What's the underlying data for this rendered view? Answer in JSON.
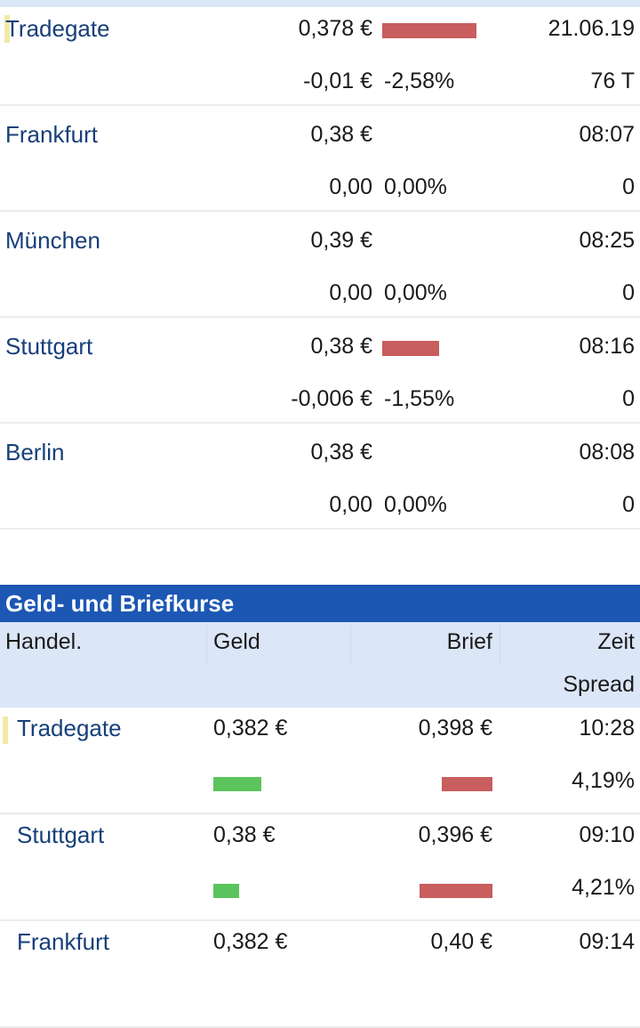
{
  "exchanges": [
    {
      "name": "Tradegate",
      "price": "0,378 €",
      "change": "-0,01 €",
      "change_pct": "-2,58%",
      "time": "21.06.19",
      "volume": "76 T",
      "highlight": true,
      "bar_color": "#c85e5e",
      "bar_fraction": 1.0
    },
    {
      "name": "Frankfurt",
      "price": "0,38 €",
      "change": "0,00",
      "change_pct": "0,00%",
      "time": "08:07",
      "volume": "0",
      "highlight": false,
      "bar_fraction": 0
    },
    {
      "name": "München",
      "price": "0,39 €",
      "change": "0,00",
      "change_pct": "0,00%",
      "time": "08:25",
      "volume": "0",
      "highlight": false,
      "bar_fraction": 0
    },
    {
      "name": "Stuttgart",
      "price": "0,38 €",
      "change": "-0,006 €",
      "change_pct": "-1,55%",
      "time": "08:16",
      "volume": "0",
      "highlight": false,
      "bar_color": "#c85e5e",
      "bar_fraction": 0.6
    },
    {
      "name": "Berlin",
      "price": "0,38 €",
      "change": "0,00",
      "change_pct": "0,00%",
      "time": "08:08",
      "volume": "0",
      "highlight": false,
      "bar_fraction": 0
    }
  ],
  "bid_ask": {
    "title": "Geld- und Briefkurse",
    "headers": {
      "exchange": "Handel.",
      "bid": "Geld",
      "ask": "Brief",
      "time": "Zeit",
      "spread": "Spread"
    },
    "colors": {
      "header_bg": "#1c57b4",
      "subheader_bg": "#dbe6f7",
      "bid_bar": "#5cc45c",
      "ask_bar": "#c85e5e",
      "name_text": "#173f7a"
    },
    "rows": [
      {
        "name": "Tradegate",
        "bid": "0,382 €",
        "ask": "0,398 €",
        "time": "10:28",
        "spread": "4,19%",
        "highlight": true,
        "bid_bar_fraction": 0.66,
        "ask_bar_fraction": 0.7
      },
      {
        "name": "Stuttgart",
        "bid": "0,38 €",
        "ask": "0,396 €",
        "time": "09:10",
        "spread": "4,21%",
        "highlight": false,
        "bid_bar_fraction": 0.35,
        "ask_bar_fraction": 1.0
      },
      {
        "name": "Frankfurt",
        "bid": "0,382 €",
        "ask": "0,40 €",
        "time": "09:14",
        "spread": "",
        "highlight": false,
        "bid_bar_fraction": 0,
        "ask_bar_fraction": 0
      }
    ]
  }
}
